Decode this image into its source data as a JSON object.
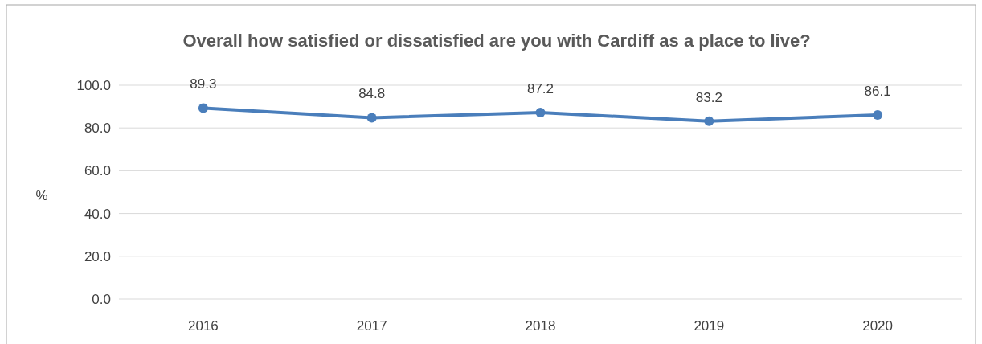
{
  "chart_data": {
    "type": "line",
    "title": "Overall how satisfied or dissatisfied are you with Cardiff as a place to live?",
    "ylabel": "%",
    "categories": [
      "2016",
      "2017",
      "2018",
      "2019",
      "2020"
    ],
    "series": [
      {
        "color": "#4a7ebb",
        "values": [
          89.3,
          84.8,
          87.2,
          83.2,
          86.1
        ]
      }
    ],
    "ylim": [
      0,
      100
    ],
    "yticks": [
      {
        "value": 0,
        "label": "0.0"
      },
      {
        "value": 20,
        "label": "20.0"
      },
      {
        "value": 40,
        "label": "40.0"
      },
      {
        "value": 60,
        "label": "60.0"
      },
      {
        "value": 80,
        "label": "80.0"
      },
      {
        "value": 100,
        "label": "100.0"
      }
    ],
    "grid": "y",
    "marker": "circle",
    "line_style": "solid",
    "data_labels": true
  }
}
